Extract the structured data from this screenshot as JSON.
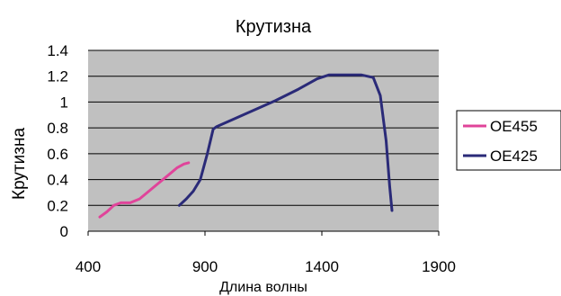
{
  "chart_data": {
    "type": "line",
    "title": "Крутизна",
    "xlabel": "Длина волны",
    "ylabel": "Крутизна",
    "xlim": [
      400,
      1900
    ],
    "ylim": [
      0,
      1.4
    ],
    "x_ticks": [
      400,
      900,
      1400,
      1900
    ],
    "y_ticks": [
      0,
      0.2,
      0.4,
      0.6,
      0.8,
      1,
      1.2,
      1.4
    ],
    "grid": true,
    "legend_position": "right",
    "plot_background": "#c0c0c0",
    "series": [
      {
        "name": "OE455",
        "color": "#e0449a",
        "points": [
          [
            450,
            0.11
          ],
          [
            480,
            0.15
          ],
          [
            510,
            0.2
          ],
          [
            540,
            0.22
          ],
          [
            580,
            0.22
          ],
          [
            620,
            0.25
          ],
          [
            660,
            0.31
          ],
          [
            700,
            0.37
          ],
          [
            740,
            0.43
          ],
          [
            780,
            0.49
          ],
          [
            810,
            0.52
          ],
          [
            830,
            0.53
          ]
        ]
      },
      {
        "name": "OE425",
        "color": "#2a2a78",
        "points": [
          [
            790,
            0.2
          ],
          [
            820,
            0.25
          ],
          [
            850,
            0.31
          ],
          [
            880,
            0.4
          ],
          [
            910,
            0.6
          ],
          [
            935,
            0.79
          ],
          [
            950,
            0.81
          ],
          [
            1000,
            0.85
          ],
          [
            1100,
            0.93
          ],
          [
            1200,
            1.01
          ],
          [
            1300,
            1.1
          ],
          [
            1380,
            1.18
          ],
          [
            1430,
            1.21
          ],
          [
            1500,
            1.21
          ],
          [
            1570,
            1.21
          ],
          [
            1620,
            1.19
          ],
          [
            1650,
            1.05
          ],
          [
            1675,
            0.7
          ],
          [
            1690,
            0.35
          ],
          [
            1700,
            0.16
          ]
        ]
      }
    ]
  }
}
